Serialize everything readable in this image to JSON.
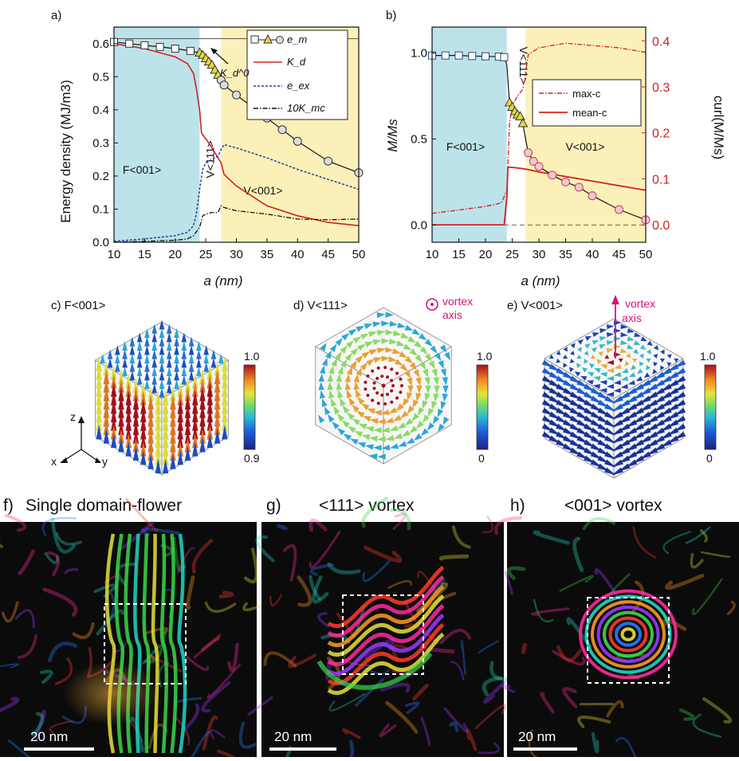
{
  "chart_data": [
    {
      "panel": "a)",
      "type": "line",
      "xlabel": "a (nm)",
      "ylabel": "Energy density (MJ/m3)",
      "xlim": [
        10,
        50
      ],
      "ylim": [
        0,
        0.65
      ],
      "xticks": [
        "10",
        "15",
        "20",
        "25",
        "30",
        "35",
        "40",
        "45",
        "50"
      ],
      "yticks": [
        "0.0",
        "0.1",
        "0.2",
        "0.3",
        "0.4",
        "0.5",
        "0.6"
      ],
      "regions": [
        {
          "label": "F<001>",
          "x": [
            10,
            24
          ],
          "color": "#bde3ea"
        },
        {
          "label": "V<111>",
          "x": [
            24,
            27.5
          ],
          "color": "#ffffff"
        },
        {
          "label": "V<001>",
          "x": [
            27.5,
            50
          ],
          "color": "#fbf1b8"
        }
      ],
      "annotation": "K_d^0",
      "series": [
        {
          "name": "e_m",
          "style": "squares (F<001>), triangles (V<111>), circles (V<001>)",
          "x": [
            10,
            12.5,
            15,
            17.5,
            20,
            22.5,
            24,
            24.5,
            25,
            25.5,
            26,
            26.5,
            27,
            27.5,
            28,
            30,
            32.5,
            35,
            37.5,
            40,
            45,
            50
          ],
          "y": [
            0.605,
            0.6,
            0.595,
            0.59,
            0.585,
            0.578,
            0.572,
            0.565,
            0.555,
            0.545,
            0.535,
            0.52,
            0.505,
            0.49,
            0.475,
            0.445,
            0.41,
            0.375,
            0.34,
            0.305,
            0.245,
            0.21
          ]
        },
        {
          "name": "K_d",
          "x": [
            10,
            15,
            20,
            22,
            23,
            23.5,
            24,
            24.3,
            24.7,
            25.5,
            26.5,
            27.5,
            28,
            30,
            35,
            40,
            45,
            50
          ],
          "y": [
            0.6,
            0.585,
            0.56,
            0.54,
            0.51,
            0.46,
            0.4,
            0.33,
            0.32,
            0.3,
            0.27,
            0.24,
            0.205,
            0.17,
            0.11,
            0.08,
            0.06,
            0.05
          ]
        },
        {
          "name": "e_ex",
          "x": [
            10,
            15,
            20,
            22,
            23,
            23.5,
            24,
            24.5,
            25,
            26,
            27,
            27.5,
            28,
            30,
            35,
            40,
            45,
            50
          ],
          "y": [
            0.003,
            0.01,
            0.02,
            0.03,
            0.05,
            0.09,
            0.16,
            0.22,
            0.24,
            0.25,
            0.26,
            0.28,
            0.295,
            0.285,
            0.255,
            0.22,
            0.19,
            0.16
          ]
        },
        {
          "name": "10K_mc",
          "x": [
            10,
            15,
            20,
            22,
            23,
            24,
            24.5,
            25,
            26,
            27,
            27.5,
            28,
            30,
            35,
            40,
            45,
            50
          ],
          "y": [
            0.0,
            0.003,
            0.006,
            0.01,
            0.02,
            0.045,
            0.08,
            0.085,
            0.09,
            0.09,
            0.11,
            0.105,
            0.095,
            0.085,
            0.07,
            0.068,
            0.07
          ]
        }
      ]
    },
    {
      "panel": "b)",
      "type": "line",
      "xlabel": "a (nm)",
      "ylabel": "M/Ms",
      "ylabel_right": "curl(M/Ms)",
      "xlim": [
        10,
        50
      ],
      "ylim": [
        -0.1,
        1.15
      ],
      "ylim_right": [
        -0.038,
        0.43
      ],
      "xticks": [
        "10",
        "15",
        "20",
        "25",
        "30",
        "35",
        "40",
        "45",
        "50"
      ],
      "yticks": [
        "0.0",
        "0.5",
        "1.0"
      ],
      "yticks_right": [
        "0.0",
        "0.1",
        "0.2",
        "0.3",
        "0.4"
      ],
      "regions": [
        {
          "label": "F<001>",
          "x": [
            10,
            24
          ],
          "color": "#bde3ea"
        },
        {
          "label": "V<111>",
          "x": [
            24,
            27.5
          ],
          "color": "#ffffff"
        },
        {
          "label": "V<001>",
          "x": [
            27.5,
            50
          ],
          "color": "#fbf1b8"
        }
      ],
      "series": [
        {
          "name": "M/Ms",
          "x": [
            10,
            12.5,
            15,
            17.5,
            20,
            22.5,
            23.5,
            24,
            24.5,
            25,
            25.5,
            26,
            26.5,
            27,
            27.5,
            28,
            29,
            30,
            32.5,
            35,
            37.5,
            40,
            45,
            50
          ],
          "y": [
            0.985,
            0.985,
            0.985,
            0.982,
            0.98,
            0.978,
            0.975,
            0.93,
            0.71,
            0.685,
            0.66,
            0.64,
            0.63,
            0.59,
            0.5,
            0.42,
            0.37,
            0.34,
            0.29,
            0.25,
            0.22,
            0.17,
            0.09,
            0.03
          ]
        },
        {
          "name": "max-c",
          "axis": "right",
          "x": [
            10,
            15,
            20,
            22,
            23,
            24,
            24.5,
            25,
            26,
            27,
            27.5,
            28,
            30,
            35,
            40,
            45,
            50
          ],
          "y": [
            0.025,
            0.032,
            0.04,
            0.045,
            0.048,
            0.075,
            0.22,
            0.26,
            0.28,
            0.295,
            0.33,
            0.37,
            0.385,
            0.395,
            0.39,
            0.385,
            0.375
          ]
        },
        {
          "name": "mean-c",
          "axis": "right",
          "x": [
            10,
            20,
            23.5,
            24,
            24.2,
            25,
            27,
            28,
            30,
            35,
            40,
            45,
            50
          ],
          "y": [
            0.0,
            0.0,
            0.0,
            0.06,
            0.125,
            0.125,
            0.122,
            0.12,
            0.115,
            0.105,
            0.095,
            0.085,
            0.075
          ]
        }
      ]
    }
  ],
  "panels": {
    "c": {
      "label": "c) F<001>",
      "cbar_max": "1.0",
      "cbar_min": "0.9",
      "axes": {
        "z": "z",
        "x": "x",
        "y": "y"
      }
    },
    "d": {
      "label": "d) V<111>",
      "cbar_max": "1.0",
      "cbar_min": "0",
      "vortex_label": "vortex",
      "axis_label": "axis"
    },
    "e": {
      "label": "e) V<001>",
      "cbar_max": "1.0",
      "cbar_min": "0",
      "vortex_label": "vortex",
      "axis_label": "axis"
    },
    "f": {
      "tag": "f)",
      "title": "Single domain-flower",
      "scale": "20 nm"
    },
    "g": {
      "tag": "g)",
      "title": "<111> vortex",
      "scale": "20 nm"
    },
    "h": {
      "tag": "h)",
      "title": "<001> vortex",
      "scale": "20 nm"
    }
  },
  "colors": {
    "red": "#d42020",
    "blue": "#2a3b9c",
    "pink": "#d4147f",
    "ice": "#bde3ea",
    "cream": "#fbf1b8"
  }
}
